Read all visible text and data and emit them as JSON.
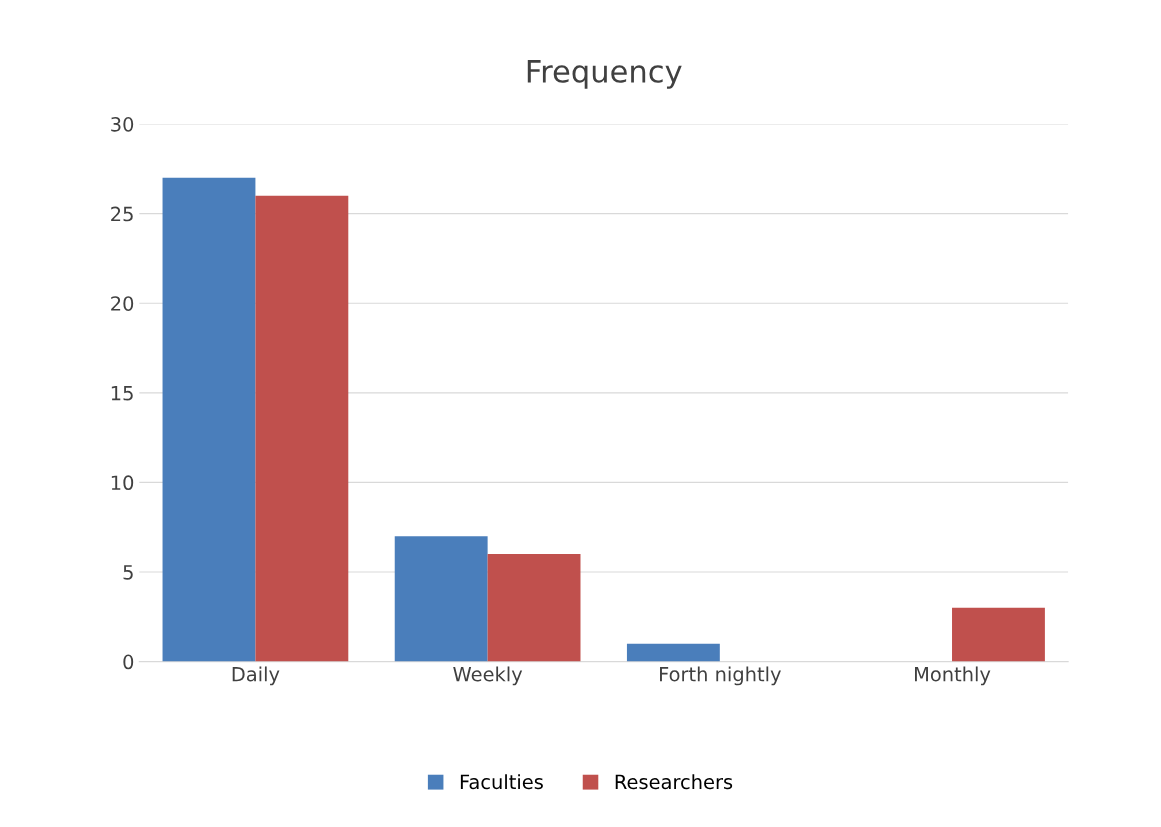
{
  "chart_data": {
    "type": "bar",
    "title": "Frequency",
    "categories": [
      "Daily",
      "Weekly",
      "Forth nightly",
      "Monthly"
    ],
    "series": [
      {
        "name": "Faculties",
        "color": "#4a7ebb",
        "values": [
          27,
          7,
          1,
          0
        ]
      },
      {
        "name": "Researchers",
        "color": "#c0504d",
        "values": [
          26,
          6,
          0,
          3
        ]
      }
    ],
    "ylim": [
      0,
      30
    ],
    "yticks": [
      0,
      5,
      10,
      15,
      20,
      25,
      30
    ],
    "grid": "y",
    "legend": "bottom"
  }
}
